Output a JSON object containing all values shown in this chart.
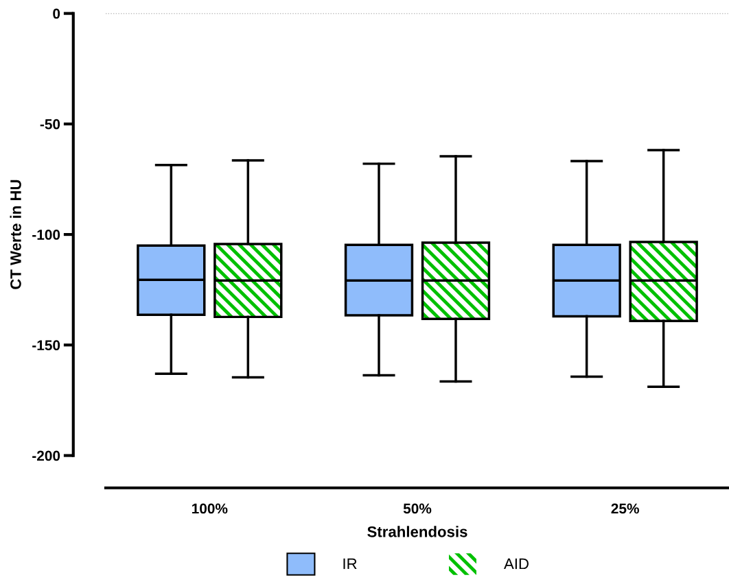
{
  "chart_data": {
    "type": "box",
    "xlabel": "Strahlendosis",
    "ylabel": "CT Werte in HU",
    "categories": [
      "100%",
      "50%",
      "25%"
    ],
    "series": [
      {
        "name": "IR",
        "color": "#8fbcfb",
        "boxes": [
          {
            "low": -163,
            "q1": -136.3,
            "median": -120.5,
            "q3": -105,
            "high": -68.6
          },
          {
            "low": -163.7,
            "q1": -136.6,
            "median": -120.8,
            "q3": -104.7,
            "high": -68
          },
          {
            "low": -164.3,
            "q1": -137,
            "median": -120.8,
            "q3": -104.7,
            "high": -66.8
          }
        ]
      },
      {
        "name": "AID",
        "color": "#00c000",
        "boxes": [
          {
            "low": -164.6,
            "q1": -137.3,
            "median": -120.8,
            "q3": -104.3,
            "high": -66.5
          },
          {
            "low": -166.5,
            "q1": -138.2,
            "median": -120.8,
            "q3": -103.7,
            "high": -64.6
          },
          {
            "low": -168.9,
            "q1": -139.1,
            "median": -120.8,
            "q3": -103.4,
            "high": -61.8
          }
        ]
      }
    ],
    "ylim": [
      -200,
      0
    ],
    "yticks": [
      0,
      -50,
      -100,
      -150,
      -200
    ],
    "ref_lines": [
      {
        "axis": "y",
        "value": 0,
        "color": "#808080",
        "line_style": "dotted"
      }
    ],
    "grid": false,
    "legend": "bottom"
  }
}
